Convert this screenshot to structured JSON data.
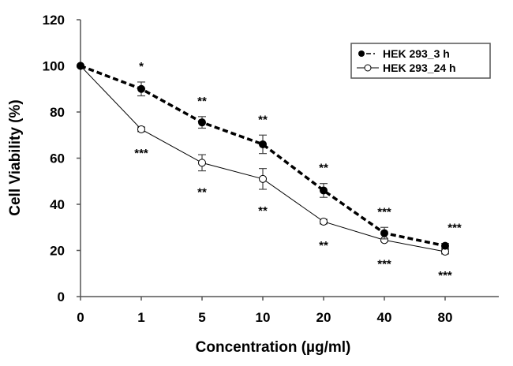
{
  "chart_data": {
    "type": "line",
    "title": "",
    "xlabel": "Concentration (µg/ml)",
    "ylabel": "Cell Viability (%)",
    "ylim": [
      0,
      120
    ],
    "yticks": [
      "0",
      "20",
      "40",
      "60",
      "80",
      "100",
      "120"
    ],
    "yticks_values": [
      0,
      20,
      40,
      60,
      80,
      100,
      120
    ],
    "categories": [
      "0",
      "1",
      "5",
      "10",
      "20",
      "40",
      "80"
    ],
    "grid": false,
    "legend_position": "top-right",
    "series": [
      {
        "name": "HEK 293_3 h",
        "marker": "filled-circle",
        "line": "dashed",
        "values": [
          100,
          90,
          75.5,
          66,
          46,
          27.5,
          22
        ],
        "errors": [
          0,
          3,
          2.5,
          4,
          3,
          2.5,
          1
        ],
        "significance": [
          "",
          "*",
          "**",
          "**",
          "**",
          "***",
          "***"
        ],
        "significance_placement": "above"
      },
      {
        "name": "HEK 293_24 h",
        "marker": "open-circle",
        "line": "solid",
        "values": [
          100,
          72.5,
          58,
          51,
          32.5,
          24.5,
          19.5
        ],
        "errors": [
          0,
          1,
          3.5,
          4.5,
          1,
          0.5,
          1
        ],
        "significance": [
          "",
          "***",
          "**",
          "**",
          "**",
          "***",
          "***"
        ],
        "significance_placement": "below"
      }
    ]
  }
}
